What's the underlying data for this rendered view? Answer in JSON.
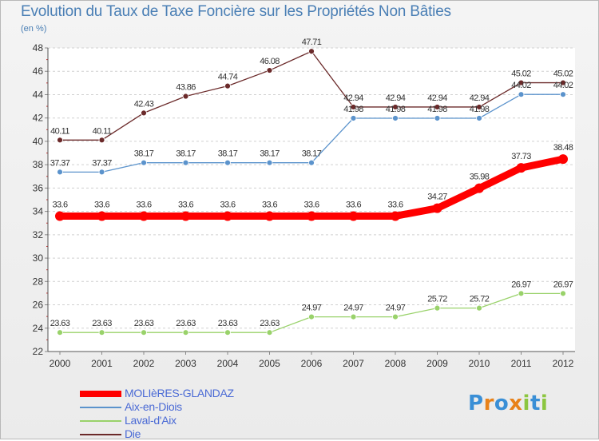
{
  "title": "Evolution du Taux de Taxe Foncière sur les Propriétés Non Bâties",
  "unit_label": "(en %)",
  "logo": {
    "letters": [
      "P",
      "r",
      "o",
      "x",
      "i",
      "t",
      "i"
    ],
    "colors": [
      "#3a8fd6",
      "#e8821a",
      "#3a8fd6",
      "#e8821a",
      "#8cc63f",
      "#3a8fd6",
      "#8cc63f"
    ]
  },
  "chart_data": {
    "type": "line",
    "title": "Evolution du Taux de Taxe Foncière sur les Propriétés Non Bâties",
    "ylabel": "(en %)",
    "xlabel": "",
    "ylim": [
      22,
      48
    ],
    "yticks": [
      22,
      24,
      26,
      28,
      30,
      32,
      34,
      36,
      38,
      40,
      42,
      44,
      46,
      48
    ],
    "categories": [
      "2000",
      "2001",
      "2002",
      "2003",
      "2004",
      "2005",
      "2006",
      "2007",
      "2008",
      "2009",
      "2010",
      "2011",
      "2012"
    ],
    "grid": "horizontal dashed",
    "legend_position": "bottom-left",
    "series": [
      {
        "name": "Die",
        "color": "#6b2a2a",
        "values": [
          40.11,
          40.11,
          42.43,
          43.86,
          44.74,
          46.08,
          47.71,
          42.94,
          42.94,
          42.94,
          42.94,
          45.02,
          45.02
        ],
        "labels": [
          "40.11",
          "40.11",
          "42.43",
          "43.86",
          "44.74",
          "46.08",
          "47.71",
          "42.94",
          "42.94",
          "42.94",
          "42.94",
          "45.02",
          "45.02"
        ]
      },
      {
        "name": "Aix-en-Diois",
        "color": "#5b93cc",
        "values": [
          37.37,
          37.37,
          38.17,
          38.17,
          38.17,
          38.17,
          38.17,
          41.98,
          41.98,
          41.98,
          41.98,
          44.02,
          44.02
        ],
        "labels": [
          "37.37",
          "37.37",
          "38.17",
          "38.17",
          "38.17",
          "38.17",
          "38.17",
          "41.98",
          "41.98",
          "41.98",
          "41.98",
          "44.02",
          "44.02"
        ]
      },
      {
        "name": "Laval-d'Aix",
        "color": "#99d26a",
        "values": [
          23.63,
          23.63,
          23.63,
          23.63,
          23.63,
          23.63,
          24.97,
          24.97,
          24.97,
          25.72,
          25.72,
          26.97,
          26.97
        ],
        "labels": [
          "23.63",
          "23.63",
          "23.63",
          "23.63",
          "23.63",
          "23.63",
          "24.97",
          "24.97",
          "24.97",
          "25.72",
          "25.72",
          "26.97",
          "26.97"
        ]
      },
      {
        "name": "MOLIèRES-GLANDAZ",
        "color": "#ff0000",
        "values": [
          33.6,
          33.6,
          33.6,
          33.6,
          33.6,
          33.6,
          33.6,
          33.6,
          33.6,
          34.27,
          35.98,
          37.73,
          38.48
        ],
        "labels": [
          "33.6",
          "33.6",
          "33.6",
          "33.6",
          "33.6",
          "33.6",
          "33.6",
          "33.6",
          "33.6",
          "34.27",
          "35.98",
          "37.73",
          "38.48"
        ]
      }
    ],
    "legend": [
      "MOLIèRES-GLANDAZ",
      "Aix-en-Diois",
      "Laval-d'Aix",
      "Die"
    ]
  }
}
